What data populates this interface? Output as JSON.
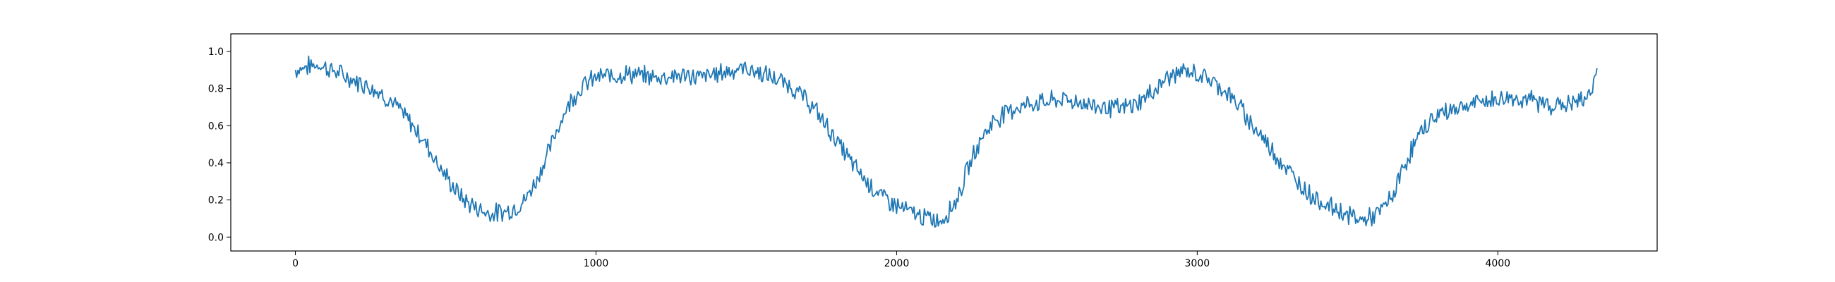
{
  "chart_data": {
    "type": "line",
    "title": "",
    "xlabel": "",
    "ylabel": "",
    "xlim": [
      -215,
      4530
    ],
    "ylim": [
      -0.075,
      1.095
    ],
    "xticks": [
      0,
      1000,
      2000,
      3000,
      4000
    ],
    "xtick_labels": [
      "0",
      "1000",
      "2000",
      "3000",
      "4000"
    ],
    "yticks": [
      0.0,
      0.2,
      0.4,
      0.6,
      0.8,
      1.0
    ],
    "ytick_labels": [
      "0.0",
      "0.2",
      "0.4",
      "0.6",
      "0.8",
      "1.0"
    ],
    "grid": false,
    "legend": "none",
    "series": [
      {
        "color": "#1f77b4",
        "x": [
          0,
          40,
          80,
          120,
          160,
          200,
          240,
          280,
          320,
          360,
          400,
          440,
          480,
          520,
          560,
          600,
          640,
          680,
          720,
          760,
          800,
          840,
          880,
          920,
          960,
          1000,
          1050,
          1100,
          1150,
          1200,
          1250,
          1300,
          1350,
          1400,
          1450,
          1500,
          1550,
          1600,
          1650,
          1700,
          1750,
          1800,
          1850,
          1900,
          1950,
          2000,
          2050,
          2100,
          2150,
          2200,
          2240,
          2280,
          2320,
          2360,
          2400,
          2450,
          2500,
          2550,
          2600,
          2650,
          2700,
          2750,
          2800,
          2850,
          2900,
          2950,
          3000,
          3050,
          3100,
          3150,
          3200,
          3250,
          3300,
          3350,
          3400,
          3450,
          3500,
          3550,
          3600,
          3650,
          3700,
          3750,
          3800,
          3850,
          3900,
          3950,
          4000,
          4050,
          4100,
          4150,
          4200,
          4250,
          4300,
          4330
        ],
        "y": [
          0.9,
          0.92,
          0.93,
          0.9,
          0.87,
          0.84,
          0.82,
          0.78,
          0.73,
          0.66,
          0.58,
          0.49,
          0.38,
          0.28,
          0.2,
          0.16,
          0.13,
          0.13,
          0.15,
          0.19,
          0.3,
          0.45,
          0.62,
          0.75,
          0.82,
          0.86,
          0.87,
          0.88,
          0.87,
          0.86,
          0.87,
          0.87,
          0.86,
          0.88,
          0.9,
          0.91,
          0.88,
          0.85,
          0.81,
          0.74,
          0.64,
          0.52,
          0.4,
          0.3,
          0.22,
          0.17,
          0.13,
          0.1,
          0.09,
          0.2,
          0.38,
          0.53,
          0.62,
          0.67,
          0.7,
          0.72,
          0.73,
          0.74,
          0.73,
          0.71,
          0.7,
          0.69,
          0.72,
          0.78,
          0.86,
          0.89,
          0.88,
          0.84,
          0.78,
          0.68,
          0.57,
          0.47,
          0.36,
          0.27,
          0.2,
          0.16,
          0.12,
          0.09,
          0.12,
          0.22,
          0.43,
          0.58,
          0.66,
          0.69,
          0.71,
          0.73,
          0.74,
          0.75,
          0.74,
          0.72,
          0.71,
          0.72,
          0.75,
          0.91
        ]
      }
    ]
  }
}
